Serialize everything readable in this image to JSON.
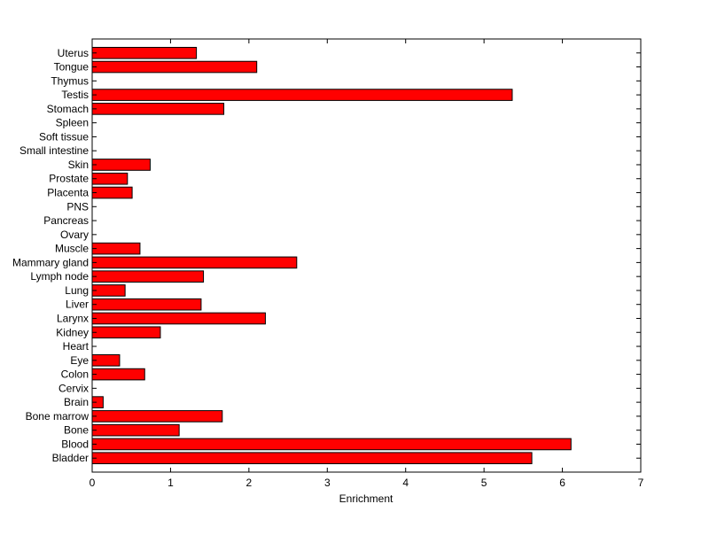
{
  "chart_data": {
    "type": "bar",
    "orientation": "horizontal",
    "categories": [
      "Bladder",
      "Blood",
      "Bone",
      "Bone marrow",
      "Brain",
      "Cervix",
      "Colon",
      "Eye",
      "Heart",
      "Kidney",
      "Larynx",
      "Liver",
      "Lung",
      "Lymph node",
      "Mammary gland",
      "Muscle",
      "Ovary",
      "Pancreas",
      "PNS",
      "Placenta",
      "Prostate",
      "Skin",
      "Small intestine",
      "Soft tissue",
      "Spleen",
      "Stomach",
      "Testis",
      "Thymus",
      "Tongue",
      "Uterus"
    ],
    "values": [
      5.61,
      6.11,
      1.11,
      1.66,
      0.14,
      0,
      0.67,
      0.35,
      0,
      0.87,
      2.21,
      1.39,
      0.42,
      1.42,
      2.61,
      0.61,
      0,
      0,
      0,
      0.51,
      0.45,
      0.74,
      0,
      0,
      0,
      1.68,
      5.36,
      0,
      2.1,
      1.33
    ],
    "title": "",
    "xlabel": "Enrichment",
    "ylabel": "",
    "xlim": [
      0,
      7
    ],
    "xticks": [
      "0",
      "1",
      "2",
      "3",
      "4",
      "5",
      "6",
      "7"
    ],
    "grid": false,
    "bar_color": "#ff0000",
    "edge_color": "#000000"
  }
}
